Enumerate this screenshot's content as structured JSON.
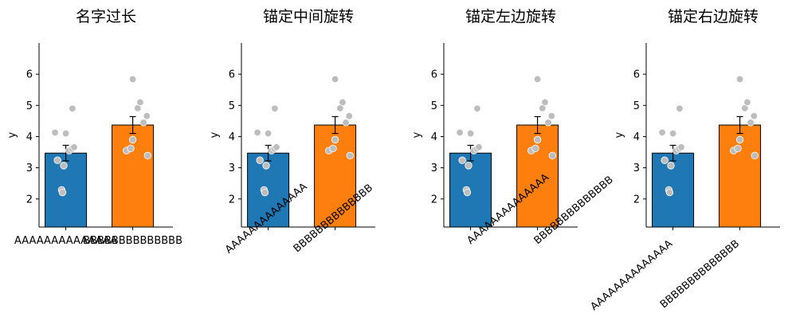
{
  "chart_data": [
    {
      "type": "bar",
      "title": "名字过长",
      "ylabel": "y",
      "categories": [
        "AAAAAAAAAAAAAA",
        "BBBBBBBBBBBBBB"
      ],
      "values": [
        3.47,
        4.37
      ],
      "errors": [
        0.25,
        0.27
      ],
      "colors": [
        "#1f77b4",
        "#ff7f0e"
      ],
      "points": [
        [
          4.13,
          4.1,
          3.24,
          3.07,
          2.29,
          2.21,
          3.55,
          3.61,
          3.66,
          4.9
        ],
        [
          3.55,
          3.62,
          3.9,
          3.39,
          4.45,
          4.66,
          4.91,
          5.1,
          5.84
        ]
      ],
      "yticks": [
        2,
        3,
        4,
        5,
        6
      ],
      "ylim": [
        1.1,
        7.0
      ],
      "xtick_rotation": 0,
      "xtick_anchor": "center"
    },
    {
      "type": "bar",
      "title": "锚定中间旋转",
      "ylabel": "y",
      "categories": [
        "AAAAAAAAAAAAAA",
        "BBBBBBBBBBBBBB"
      ],
      "values": [
        3.47,
        4.37
      ],
      "errors": [
        0.25,
        0.27
      ],
      "colors": [
        "#1f77b4",
        "#ff7f0e"
      ],
      "points": [
        [
          4.13,
          4.1,
          3.24,
          3.07,
          2.29,
          2.21,
          3.55,
          3.61,
          3.66,
          4.9
        ],
        [
          3.55,
          3.62,
          3.9,
          3.39,
          4.45,
          4.66,
          4.91,
          5.1,
          5.84
        ]
      ],
      "yticks": [
        2,
        3,
        4,
        5,
        6
      ],
      "ylim": [
        1.1,
        7.0
      ],
      "xtick_rotation": 40,
      "xtick_anchor": "center"
    },
    {
      "type": "bar",
      "title": "锚定左边旋转",
      "ylabel": "y",
      "categories": [
        "AAAAAAAAAAAAAA",
        "BBBBBBBBBBBBBB"
      ],
      "values": [
        3.47,
        4.37
      ],
      "errors": [
        0.25,
        0.27
      ],
      "colors": [
        "#1f77b4",
        "#ff7f0e"
      ],
      "points": [
        [
          4.13,
          4.1,
          3.24,
          3.07,
          2.29,
          2.21,
          3.55,
          3.61,
          3.66,
          4.9
        ],
        [
          3.55,
          3.62,
          3.9,
          3.39,
          4.45,
          4.66,
          4.91,
          5.1,
          5.84
        ]
      ],
      "yticks": [
        2,
        3,
        4,
        5,
        6
      ],
      "ylim": [
        1.1,
        7.0
      ],
      "xtick_rotation": 40,
      "xtick_anchor": "left"
    },
    {
      "type": "bar",
      "title": "锚定右边旋转",
      "ylabel": "y",
      "categories": [
        "AAAAAAAAAAAAAA",
        "BBBBBBBBBBBBBB"
      ],
      "values": [
        3.47,
        4.37
      ],
      "errors": [
        0.25,
        0.27
      ],
      "colors": [
        "#1f77b4",
        "#ff7f0e"
      ],
      "points": [
        [
          4.13,
          4.1,
          3.24,
          3.07,
          2.29,
          2.21,
          3.55,
          3.61,
          3.66,
          4.9
        ],
        [
          3.55,
          3.62,
          3.9,
          3.39,
          4.45,
          4.66,
          4.91,
          5.1,
          5.84
        ]
      ],
      "yticks": [
        2,
        3,
        4,
        5,
        6
      ],
      "ylim": [
        1.1,
        7.0
      ],
      "xtick_rotation": 40,
      "xtick_anchor": "right"
    }
  ]
}
